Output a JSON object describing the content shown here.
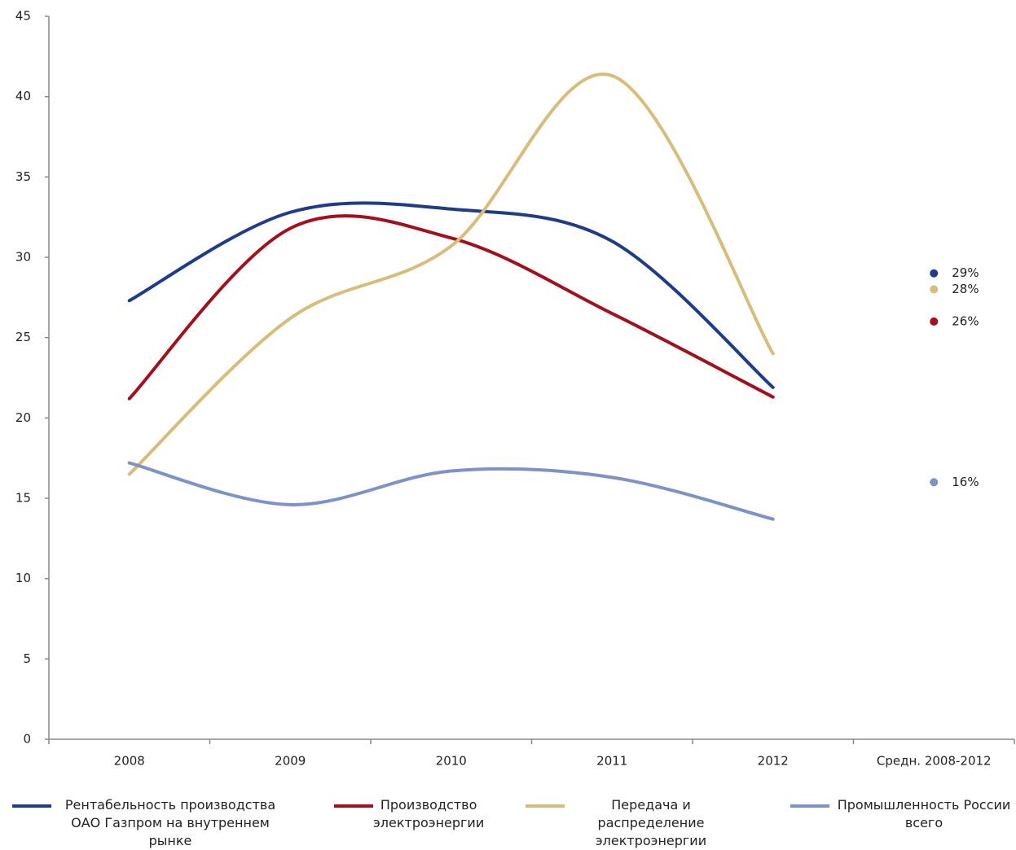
{
  "chart_data": {
    "type": "line",
    "categories": [
      "2008",
      "2009",
      "2010",
      "2011",
      "2012",
      "Средн. 2008-2012"
    ],
    "ylim": [
      0,
      45
    ],
    "yticks": [
      0,
      5,
      10,
      15,
      20,
      25,
      30,
      35,
      40,
      45
    ],
    "grid": false,
    "smooth": true,
    "legend": "bottom",
    "series": [
      {
        "name": "Рентабельность производства ОАО Газпром на внутреннем рынке",
        "color": "#1f3c88",
        "values": [
          27.3,
          32.8,
          33.0,
          31.0,
          21.9,
          null
        ],
        "average": 29,
        "average_label": "29%"
      },
      {
        "name": "Производство электроэнергии",
        "color": "#a50f1c",
        "values": [
          21.2,
          31.8,
          31.2,
          26.5,
          21.3,
          null
        ],
        "average": 26,
        "average_label": "26%"
      },
      {
        "name": "Передача и распределение электроэнергии",
        "color": "#d8bc7a",
        "values": [
          16.5,
          26.2,
          30.7,
          41.3,
          24.0,
          null
        ],
        "average": 28,
        "average_label": "28%"
      },
      {
        "name": "Промышленность России всего",
        "color": "#7d92c6",
        "values": [
          17.2,
          14.6,
          16.7,
          16.3,
          13.7,
          null
        ],
        "average": 16,
        "average_label": "16%"
      }
    ]
  }
}
